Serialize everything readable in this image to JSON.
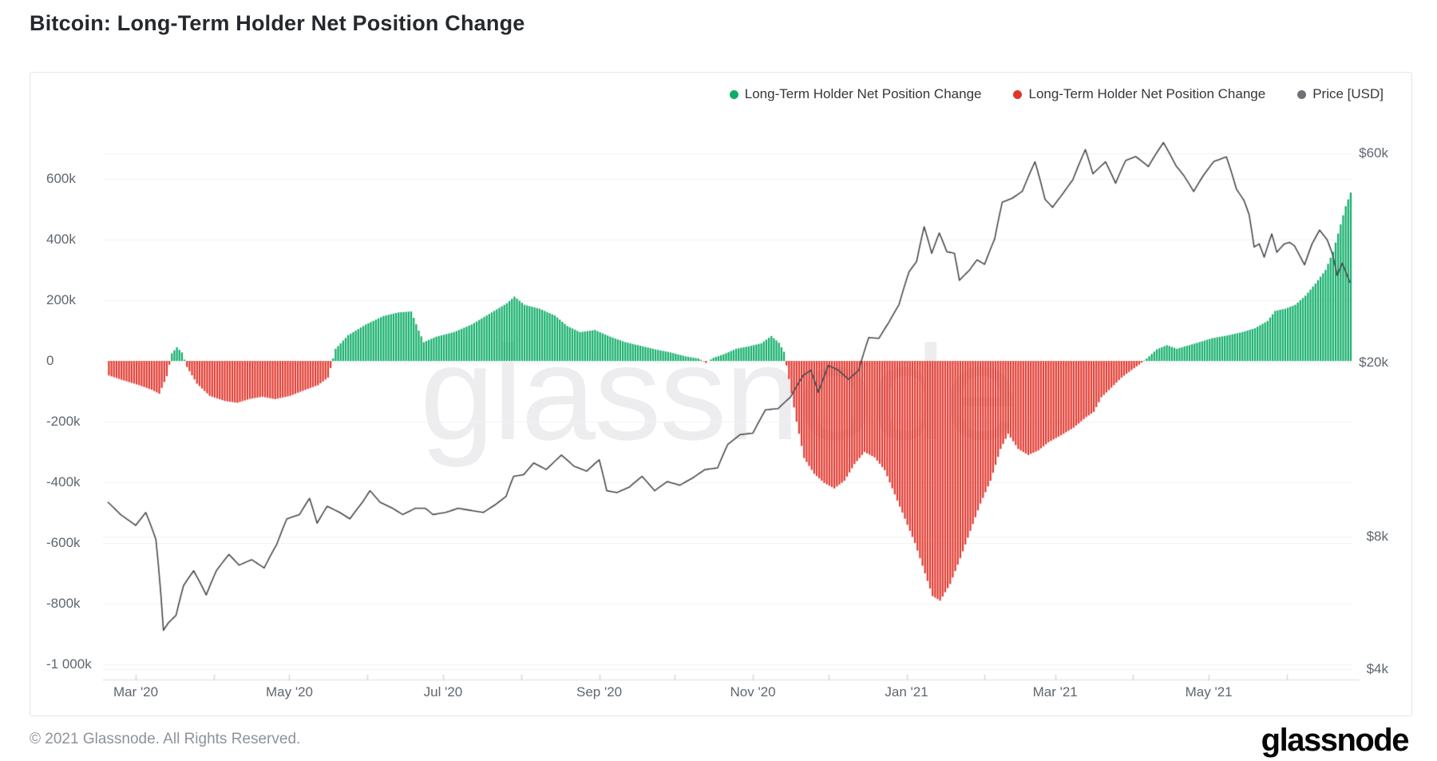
{
  "page": {
    "title": "Bitcoin: Long-Term Holder Net Position Change",
    "watermark": "glassnode",
    "footer": {
      "copyright": "© 2021 Glassnode. All Rights Reserved.",
      "logo": "glassnode"
    }
  },
  "legend": {
    "items": [
      {
        "label": "Long-Term Holder Net Position Change",
        "color": "#0ead67"
      },
      {
        "label": "Long-Term Holder Net Position Change",
        "color": "#e1362c"
      },
      {
        "label": "Price [USD]",
        "color": "#6e7176"
      }
    ]
  },
  "chart_data": {
    "type": "combo",
    "title": "Bitcoin: Long-Term Holder Net Position Change",
    "grid": true,
    "legend_position": "top-right",
    "watermark": "glassnode",
    "x_range": [
      "2020-02-17",
      "2021-06-27"
    ],
    "x_ticks": [
      {
        "label": "Mar '20",
        "date": "2020-03-01"
      },
      {
        "label": "May '20",
        "date": "2020-05-01"
      },
      {
        "label": "Jul '20",
        "date": "2020-07-01"
      },
      {
        "label": "Sep '20",
        "date": "2020-09-01"
      },
      {
        "label": "Nov '20",
        "date": "2020-11-01"
      },
      {
        "label": "Jan '21",
        "date": "2021-01-01"
      },
      {
        "label": "Mar '21",
        "date": "2021-03-01"
      },
      {
        "label": "May '21",
        "date": "2021-05-01"
      }
    ],
    "minor_month_ticks": [
      "2020-03-01",
      "2020-04-01",
      "2020-05-01",
      "2020-06-01",
      "2020-07-01",
      "2020-08-01",
      "2020-09-01",
      "2020-10-01",
      "2020-11-01",
      "2020-12-01",
      "2021-01-01",
      "2021-02-01",
      "2021-03-01",
      "2021-04-01",
      "2021-05-01",
      "2021-06-01"
    ],
    "left_axis": {
      "title": "Long-Term Holder Net Position Change [BTC]",
      "scale": "linear",
      "ticks": [
        {
          "label": "600k",
          "value": 600
        },
        {
          "label": "400k",
          "value": 400
        },
        {
          "label": "200k",
          "value": 200
        },
        {
          "label": "0",
          "value": 0
        },
        {
          "label": "-200k",
          "value": -200
        },
        {
          "label": "-400k",
          "value": -400
        },
        {
          "label": "-600k",
          "value": -600
        },
        {
          "label": "-800k",
          "value": -800
        },
        {
          "label": "-1 000k",
          "value": -1000
        }
      ]
    },
    "right_axis": {
      "title": "Price [USD]",
      "scale": "log",
      "ticks": [
        {
          "label": "$60k",
          "value": 60
        },
        {
          "label": "$20k",
          "value": 20
        },
        {
          "label": "$8k",
          "value": 8
        },
        {
          "label": "$4k",
          "value": 4
        }
      ]
    },
    "series": [
      {
        "name": "Long-Term Holder Net Position Change",
        "type": "bar",
        "axis": "left",
        "unit": "BTC x1000",
        "colors": {
          "positive": "#0ead67",
          "negative": "#e1362c"
        },
        "points": [
          [
            "2020-02-19",
            -48
          ],
          [
            "2020-02-24",
            -62
          ],
          [
            "2020-03-02",
            -80
          ],
          [
            "2020-03-07",
            -95
          ],
          [
            "2020-03-10",
            -108
          ],
          [
            "2020-03-13",
            -50
          ],
          [
            "2020-03-15",
            25
          ],
          [
            "2020-03-17",
            45
          ],
          [
            "2020-03-19",
            28
          ],
          [
            "2020-03-21",
            -20
          ],
          [
            "2020-03-25",
            -75
          ],
          [
            "2020-03-30",
            -115
          ],
          [
            "2020-04-05",
            -132
          ],
          [
            "2020-04-10",
            -138
          ],
          [
            "2020-04-15",
            -125
          ],
          [
            "2020-04-20",
            -118
          ],
          [
            "2020-04-25",
            -126
          ],
          [
            "2020-05-01",
            -115
          ],
          [
            "2020-05-07",
            -95
          ],
          [
            "2020-05-12",
            -80
          ],
          [
            "2020-05-16",
            -55
          ],
          [
            "2020-05-19",
            40
          ],
          [
            "2020-05-24",
            85
          ],
          [
            "2020-05-31",
            120
          ],
          [
            "2020-06-07",
            148
          ],
          [
            "2020-06-13",
            160
          ],
          [
            "2020-06-18",
            163
          ],
          [
            "2020-06-21",
            100
          ],
          [
            "2020-06-23",
            62
          ],
          [
            "2020-06-28",
            80
          ],
          [
            "2020-07-05",
            95
          ],
          [
            "2020-07-12",
            120
          ],
          [
            "2020-07-19",
            155
          ],
          [
            "2020-07-26",
            190
          ],
          [
            "2020-07-29",
            212
          ],
          [
            "2020-08-02",
            185
          ],
          [
            "2020-08-08",
            172
          ],
          [
            "2020-08-14",
            150
          ],
          [
            "2020-08-19",
            115
          ],
          [
            "2020-08-24",
            95
          ],
          [
            "2020-08-30",
            102
          ],
          [
            "2020-09-05",
            80
          ],
          [
            "2020-09-11",
            62
          ],
          [
            "2020-09-17",
            50
          ],
          [
            "2020-09-23",
            38
          ],
          [
            "2020-09-29",
            28
          ],
          [
            "2020-10-05",
            15
          ],
          [
            "2020-10-10",
            8
          ],
          [
            "2020-10-13",
            -6
          ],
          [
            "2020-10-16",
            10
          ],
          [
            "2020-10-20",
            22
          ],
          [
            "2020-10-25",
            40
          ],
          [
            "2020-10-30",
            48
          ],
          [
            "2020-11-04",
            58
          ],
          [
            "2020-11-08",
            82
          ],
          [
            "2020-11-11",
            60
          ],
          [
            "2020-11-13",
            30
          ],
          [
            "2020-11-15",
            -60
          ],
          [
            "2020-11-18",
            -200
          ],
          [
            "2020-11-21",
            -320
          ],
          [
            "2020-11-25",
            -372
          ],
          [
            "2020-11-29",
            -402
          ],
          [
            "2020-12-03",
            -420
          ],
          [
            "2020-12-07",
            -395
          ],
          [
            "2020-12-11",
            -340
          ],
          [
            "2020-12-15",
            -300
          ],
          [
            "2020-12-19",
            -318
          ],
          [
            "2020-12-23",
            -360
          ],
          [
            "2020-12-27",
            -440
          ],
          [
            "2020-12-31",
            -520
          ],
          [
            "2021-01-04",
            -600
          ],
          [
            "2021-01-08",
            -700
          ],
          [
            "2021-01-11",
            -775
          ],
          [
            "2021-01-14",
            -790
          ],
          [
            "2021-01-18",
            -735
          ],
          [
            "2021-01-22",
            -650
          ],
          [
            "2021-01-26",
            -560
          ],
          [
            "2021-01-30",
            -470
          ],
          [
            "2021-02-03",
            -395
          ],
          [
            "2021-02-07",
            -290
          ],
          [
            "2021-02-10",
            -240
          ],
          [
            "2021-02-14",
            -290
          ],
          [
            "2021-02-18",
            -310
          ],
          [
            "2021-02-22",
            -295
          ],
          [
            "2021-02-26",
            -268
          ],
          [
            "2021-03-03",
            -245
          ],
          [
            "2021-03-08",
            -220
          ],
          [
            "2021-03-13",
            -185
          ],
          [
            "2021-03-16",
            -168
          ],
          [
            "2021-03-19",
            -120
          ],
          [
            "2021-03-23",
            -88
          ],
          [
            "2021-03-27",
            -55
          ],
          [
            "2021-03-31",
            -30
          ],
          [
            "2021-04-03",
            -12
          ],
          [
            "2021-04-06",
            8
          ],
          [
            "2021-04-10",
            38
          ],
          [
            "2021-04-14",
            52
          ],
          [
            "2021-04-18",
            40
          ],
          [
            "2021-04-22",
            50
          ],
          [
            "2021-04-27",
            62
          ],
          [
            "2021-05-02",
            75
          ],
          [
            "2021-05-08",
            84
          ],
          [
            "2021-05-14",
            95
          ],
          [
            "2021-05-19",
            108
          ],
          [
            "2021-05-24",
            132
          ],
          [
            "2021-05-27",
            165
          ],
          [
            "2021-05-31",
            172
          ],
          [
            "2021-06-04",
            185
          ],
          [
            "2021-06-08",
            215
          ],
          [
            "2021-06-12",
            255
          ],
          [
            "2021-06-16",
            300
          ],
          [
            "2021-06-19",
            360
          ],
          [
            "2021-06-22",
            450
          ],
          [
            "2021-06-24",
            510
          ],
          [
            "2021-06-26",
            555
          ]
        ]
      },
      {
        "name": "Price [USD]",
        "type": "line",
        "axis": "right",
        "unit": "USD x1000",
        "color": "#46494e",
        "points": [
          [
            "2020-02-19",
            9.6
          ],
          [
            "2020-02-24",
            9.0
          ],
          [
            "2020-03-01",
            8.5
          ],
          [
            "2020-03-05",
            9.1
          ],
          [
            "2020-03-09",
            7.9
          ],
          [
            "2020-03-12",
            4.9
          ],
          [
            "2020-03-14",
            5.1
          ],
          [
            "2020-03-17",
            5.3
          ],
          [
            "2020-03-20",
            6.2
          ],
          [
            "2020-03-24",
            6.7
          ],
          [
            "2020-03-29",
            5.9
          ],
          [
            "2020-04-02",
            6.7
          ],
          [
            "2020-04-07",
            7.3
          ],
          [
            "2020-04-11",
            6.9
          ],
          [
            "2020-04-16",
            7.1
          ],
          [
            "2020-04-21",
            6.8
          ],
          [
            "2020-04-26",
            7.7
          ],
          [
            "2020-04-30",
            8.8
          ],
          [
            "2020-05-05",
            9.0
          ],
          [
            "2020-05-09",
            9.8
          ],
          [
            "2020-05-12",
            8.6
          ],
          [
            "2020-05-16",
            9.4
          ],
          [
            "2020-05-21",
            9.1
          ],
          [
            "2020-05-25",
            8.8
          ],
          [
            "2020-05-30",
            9.6
          ],
          [
            "2020-06-02",
            10.2
          ],
          [
            "2020-06-06",
            9.6
          ],
          [
            "2020-06-11",
            9.3
          ],
          [
            "2020-06-15",
            9.0
          ],
          [
            "2020-06-20",
            9.3
          ],
          [
            "2020-06-24",
            9.3
          ],
          [
            "2020-06-27",
            9.0
          ],
          [
            "2020-07-02",
            9.1
          ],
          [
            "2020-07-07",
            9.3
          ],
          [
            "2020-07-12",
            9.2
          ],
          [
            "2020-07-17",
            9.1
          ],
          [
            "2020-07-22",
            9.5
          ],
          [
            "2020-07-26",
            9.9
          ],
          [
            "2020-07-29",
            11.0
          ],
          [
            "2020-08-02",
            11.1
          ],
          [
            "2020-08-06",
            11.8
          ],
          [
            "2020-08-11",
            11.4
          ],
          [
            "2020-08-17",
            12.3
          ],
          [
            "2020-08-22",
            11.6
          ],
          [
            "2020-08-27",
            11.3
          ],
          [
            "2020-09-01",
            12.0
          ],
          [
            "2020-09-04",
            10.2
          ],
          [
            "2020-09-08",
            10.1
          ],
          [
            "2020-09-13",
            10.4
          ],
          [
            "2020-09-18",
            11.0
          ],
          [
            "2020-09-23",
            10.2
          ],
          [
            "2020-09-28",
            10.7
          ],
          [
            "2020-10-03",
            10.5
          ],
          [
            "2020-10-08",
            10.9
          ],
          [
            "2020-10-13",
            11.4
          ],
          [
            "2020-10-18",
            11.5
          ],
          [
            "2020-10-22",
            13.0
          ],
          [
            "2020-10-27",
            13.7
          ],
          [
            "2020-11-01",
            13.8
          ],
          [
            "2020-11-06",
            15.6
          ],
          [
            "2020-11-11",
            15.7
          ],
          [
            "2020-11-16",
            16.7
          ],
          [
            "2020-11-21",
            18.7
          ],
          [
            "2020-11-24",
            19.2
          ],
          [
            "2020-11-27",
            17.1
          ],
          [
            "2020-12-01",
            19.7
          ],
          [
            "2020-12-05",
            19.2
          ],
          [
            "2020-12-09",
            18.3
          ],
          [
            "2020-12-13",
            19.2
          ],
          [
            "2020-12-17",
            22.8
          ],
          [
            "2020-12-21",
            22.7
          ],
          [
            "2020-12-25",
            24.7
          ],
          [
            "2020-12-29",
            27.1
          ],
          [
            "2021-01-02",
            32.2
          ],
          [
            "2021-01-05",
            34.0
          ],
          [
            "2021-01-08",
            40.8
          ],
          [
            "2021-01-11",
            35.5
          ],
          [
            "2021-01-14",
            39.5
          ],
          [
            "2021-01-17",
            35.8
          ],
          [
            "2021-01-20",
            35.5
          ],
          [
            "2021-01-22",
            30.8
          ],
          [
            "2021-01-26",
            32.5
          ],
          [
            "2021-01-29",
            34.3
          ],
          [
            "2021-02-01",
            33.5
          ],
          [
            "2021-02-05",
            38.3
          ],
          [
            "2021-02-08",
            46.4
          ],
          [
            "2021-02-12",
            47.4
          ],
          [
            "2021-02-16",
            49.2
          ],
          [
            "2021-02-21",
            57.4
          ],
          [
            "2021-02-25",
            47.1
          ],
          [
            "2021-02-28",
            45.2
          ],
          [
            "2021-03-04",
            48.5
          ],
          [
            "2021-03-08",
            52.2
          ],
          [
            "2021-03-13",
            61.2
          ],
          [
            "2021-03-16",
            53.9
          ],
          [
            "2021-03-21",
            57.4
          ],
          [
            "2021-03-25",
            51.3
          ],
          [
            "2021-03-29",
            57.8
          ],
          [
            "2021-04-02",
            59.0
          ],
          [
            "2021-04-07",
            56.0
          ],
          [
            "2021-04-10",
            59.8
          ],
          [
            "2021-04-13",
            63.5
          ],
          [
            "2021-04-18",
            56.2
          ],
          [
            "2021-04-21",
            53.5
          ],
          [
            "2021-04-25",
            49.1
          ],
          [
            "2021-04-29",
            53.6
          ],
          [
            "2021-05-03",
            57.5
          ],
          [
            "2021-05-08",
            58.9
          ],
          [
            "2021-05-12",
            49.7
          ],
          [
            "2021-05-15",
            46.8
          ],
          [
            "2021-05-17",
            43.5
          ],
          [
            "2021-05-19",
            36.7
          ],
          [
            "2021-05-21",
            37.3
          ],
          [
            "2021-05-23",
            34.8
          ],
          [
            "2021-05-26",
            39.3
          ],
          [
            "2021-05-28",
            35.7
          ],
          [
            "2021-05-31",
            37.3
          ],
          [
            "2021-06-02",
            37.6
          ],
          [
            "2021-06-04",
            36.9
          ],
          [
            "2021-06-08",
            33.4
          ],
          [
            "2021-06-11",
            37.3
          ],
          [
            "2021-06-14",
            40.1
          ],
          [
            "2021-06-17",
            38.1
          ],
          [
            "2021-06-19",
            35.5
          ],
          [
            "2021-06-21",
            31.6
          ],
          [
            "2021-06-23",
            33.7
          ],
          [
            "2021-06-25",
            31.5
          ],
          [
            "2021-06-26",
            30.5
          ]
        ]
      }
    ]
  },
  "style": {
    "grid_color": "#f1f1f3",
    "axis_line_color": "#e7e7ea",
    "tick_color": "#d8d8db",
    "axis_text_color": "#5f6670"
  }
}
